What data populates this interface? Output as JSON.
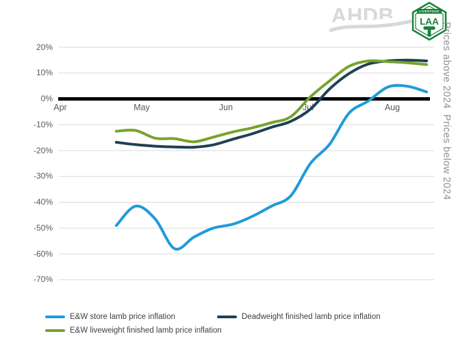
{
  "logos": {
    "ahdb_text": "AHDB",
    "laa_text": "LAA",
    "laa_banner": "LIVESTOCK"
  },
  "side_labels": {
    "above": "Prices above 2024",
    "below": "Prices below 2024"
  },
  "colors": {
    "store_blue": "#1f9bd7",
    "deadweight_navy": "#1e4154",
    "liveweight_green": "#77a32c",
    "gridline": "#d9d9d9",
    "zero_line": "#000000",
    "axis_text": "#595959",
    "legend_text": "#404040",
    "side_text": "#8f8f8f",
    "ahdb_gray": "#d8d8d8",
    "laa_green": "#17803a"
  },
  "chart_data": {
    "type": "line",
    "title": "",
    "x_axis": {
      "unit": "days since 1 April",
      "ticks": [
        {
          "label": "Apr",
          "day": 0
        },
        {
          "label": "May",
          "day": 30
        },
        {
          "label": "Jun",
          "day": 61
        },
        {
          "label": "Jul",
          "day": 91
        },
        {
          "label": "Aug",
          "day": 122
        }
      ],
      "range_days": [
        0,
        136
      ]
    },
    "y_axis": {
      "tick_values": [
        20,
        10,
        0,
        -10,
        -20,
        -30,
        -40,
        -50,
        -60,
        -70
      ],
      "tick_labels": [
        "20%",
        "10%",
        "0%",
        "-10%",
        "-20%",
        "-30%",
        "-40%",
        "-50%",
        "-60%",
        "-70%"
      ],
      "range": [
        -70,
        20
      ],
      "format": "percent"
    },
    "zero_line": true,
    "grid": true,
    "legend_position": "bottom",
    "days": [
      20.6,
      27.7,
      34.9,
      42,
      49.1,
      56.2,
      63.4,
      70.5,
      77.6,
      84.7,
      91.9,
      99,
      106.1,
      113.2,
      120.4,
      127.5,
      134.6
    ],
    "series": [
      {
        "name": "E&W store lamb price inflation",
        "color": "#1f9bd7",
        "values": [
          -49,
          -41.5,
          -46.5,
          -58,
          -53.5,
          -50,
          -48.5,
          -45.5,
          -41.5,
          -37.5,
          -25,
          -17.5,
          -5.5,
          -0.8,
          4.6,
          4.9,
          2.7
        ]
      },
      {
        "name": "Deadweight finished lamb price inflation",
        "color": "#1e4154",
        "values": [
          -16.8,
          -17.7,
          -18.3,
          -18.6,
          -18.7,
          -17.8,
          -15.6,
          -13.5,
          -11,
          -8.7,
          -4,
          3.9,
          9.8,
          13.5,
          14.7,
          15,
          14.7
        ]
      },
      {
        "name": "E&W liveweight finished lamb price inflation",
        "color": "#77a32c",
        "values": [
          -12.5,
          -12.2,
          -15.2,
          -15.4,
          -16.6,
          -14.8,
          -12.8,
          -11.2,
          -9.2,
          -6.9,
          0.8,
          7,
          12.6,
          14.7,
          14.4,
          14,
          13.3
        ]
      }
    ],
    "annotations": [
      "Prices above 2024",
      "Prices below 2024"
    ]
  }
}
